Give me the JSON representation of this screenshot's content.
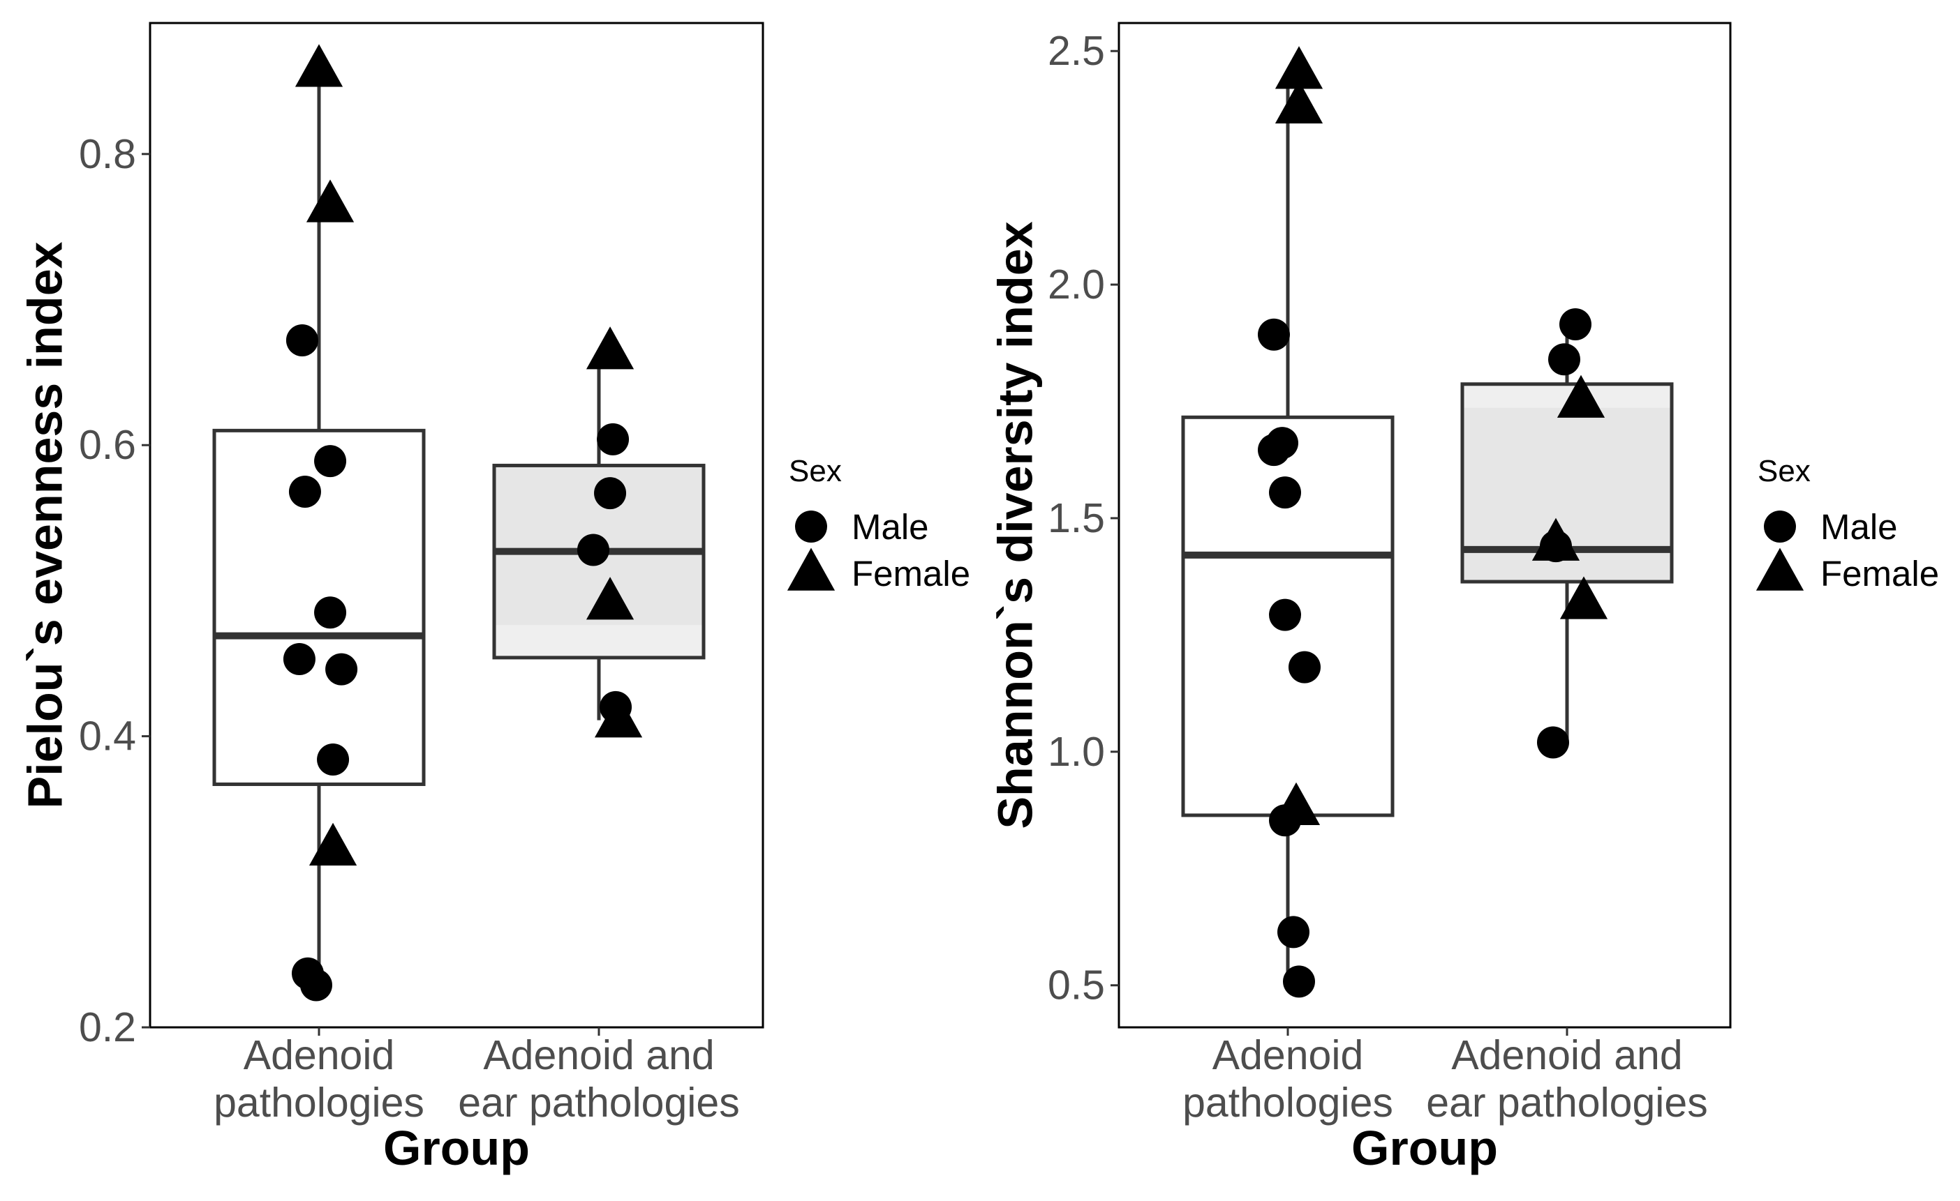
{
  "chart_data": [
    {
      "type": "boxplot",
      "title": "",
      "xlabel": "Group",
      "ylabel": "Pielou`s evenness index",
      "categories": [
        "Adenoid pathologies",
        "Adenoid and ear pathologies"
      ],
      "category_lines": [
        [
          "Adenoid",
          "pathologies"
        ],
        [
          "Adenoid and",
          "ear pathologies"
        ]
      ],
      "ylim": [
        0.2,
        0.89
      ],
      "yticks": [
        0.2,
        0.4,
        0.6,
        0.8
      ],
      "ytick_labels": [
        "0.2",
        "0.4",
        "0.6",
        "0.8"
      ],
      "boxes": [
        {
          "group": "Adenoid pathologies",
          "q1": 0.367,
          "median": 0.469,
          "q3": 0.61,
          "whisker_low": 0.23,
          "whisker_high": 0.858,
          "fill": "#ffffff"
        },
        {
          "group": "Adenoid and ear pathologies",
          "q1": 0.454,
          "median": 0.527,
          "q3": 0.586,
          "whisker_low": 0.411,
          "whisker_high": 0.664,
          "fill": "#e6e6e6",
          "fill_low": "#efefef"
        }
      ],
      "points": [
        {
          "group": 0,
          "offset": 0.0,
          "y": 0.858,
          "sex": "Female"
        },
        {
          "group": 0,
          "offset": 0.04,
          "y": 0.765,
          "sex": "Female"
        },
        {
          "group": 0,
          "offset": -0.06,
          "y": 0.672,
          "sex": "Male"
        },
        {
          "group": 0,
          "offset": 0.04,
          "y": 0.589,
          "sex": "Male"
        },
        {
          "group": 0,
          "offset": -0.05,
          "y": 0.568,
          "sex": "Male"
        },
        {
          "group": 0,
          "offset": 0.04,
          "y": 0.485,
          "sex": "Male"
        },
        {
          "group": 0,
          "offset": -0.07,
          "y": 0.453,
          "sex": "Male"
        },
        {
          "group": 0,
          "offset": 0.08,
          "y": 0.446,
          "sex": "Male"
        },
        {
          "group": 0,
          "offset": 0.05,
          "y": 0.384,
          "sex": "Male"
        },
        {
          "group": 0,
          "offset": 0.05,
          "y": 0.323,
          "sex": "Female"
        },
        {
          "group": 0,
          "offset": -0.04,
          "y": 0.237,
          "sex": "Male"
        },
        {
          "group": 0,
          "offset": -0.01,
          "y": 0.229,
          "sex": "Male"
        },
        {
          "group": 1,
          "offset": 0.04,
          "y": 0.664,
          "sex": "Female"
        },
        {
          "group": 1,
          "offset": 0.05,
          "y": 0.604,
          "sex": "Male"
        },
        {
          "group": 1,
          "offset": 0.04,
          "y": 0.567,
          "sex": "Male"
        },
        {
          "group": 1,
          "offset": -0.02,
          "y": 0.528,
          "sex": "Male"
        },
        {
          "group": 1,
          "offset": 0.04,
          "y": 0.492,
          "sex": "Female"
        },
        {
          "group": 1,
          "offset": 0.06,
          "y": 0.42,
          "sex": "Male"
        },
        {
          "group": 1,
          "offset": 0.07,
          "y": 0.411,
          "sex": "Female"
        }
      ],
      "legend": {
        "title": "Sex",
        "entries": [
          {
            "label": "Male",
            "shape": "circle"
          },
          {
            "label": "Female",
            "shape": "triangle"
          }
        ],
        "position": "right"
      }
    },
    {
      "type": "boxplot",
      "title": "",
      "xlabel": "Group",
      "ylabel": "Shannon`s diversity index",
      "categories": [
        "Adenoid pathologies",
        "Adenoid and ear pathologies"
      ],
      "category_lines": [
        [
          "Adenoid",
          "pathologies"
        ],
        [
          "Adenoid and",
          "ear pathologies"
        ]
      ],
      "ylim": [
        0.41,
        2.56
      ],
      "yticks": [
        0.5,
        1.0,
        1.5,
        2.0,
        2.5
      ],
      "ytick_labels": [
        "0.5",
        "1.0",
        "1.5",
        "2.0",
        "2.5"
      ],
      "boxes": [
        {
          "group": "Adenoid pathologies",
          "q1": 0.864,
          "median": 1.421,
          "q3": 1.716,
          "whisker_low": 0.508,
          "whisker_high": 2.456,
          "fill": "#ffffff"
        },
        {
          "group": "Adenoid and ear pathologies",
          "q1": 1.364,
          "median": 1.433,
          "q3": 1.787,
          "whisker_low": 1.02,
          "whisker_high": 1.915,
          "fill": "#e6e6e6",
          "fill_top": "#efefef"
        }
      ],
      "points": [
        {
          "group": 0,
          "offset": 0.04,
          "y": 2.456,
          "sex": "Female"
        },
        {
          "group": 0,
          "offset": 0.04,
          "y": 2.382,
          "sex": "Female"
        },
        {
          "group": 0,
          "offset": -0.05,
          "y": 1.893,
          "sex": "Male"
        },
        {
          "group": 0,
          "offset": -0.02,
          "y": 1.661,
          "sex": "Male"
        },
        {
          "group": 0,
          "offset": -0.05,
          "y": 1.646,
          "sex": "Male"
        },
        {
          "group": 0,
          "offset": -0.01,
          "y": 1.555,
          "sex": "Male"
        },
        {
          "group": 0,
          "offset": -0.01,
          "y": 1.293,
          "sex": "Male"
        },
        {
          "group": 0,
          "offset": 0.06,
          "y": 1.181,
          "sex": "Male"
        },
        {
          "group": 0,
          "offset": 0.03,
          "y": 0.88,
          "sex": "Female"
        },
        {
          "group": 0,
          "offset": -0.01,
          "y": 0.853,
          "sex": "Male"
        },
        {
          "group": 0,
          "offset": 0.02,
          "y": 0.614,
          "sex": "Male"
        },
        {
          "group": 0,
          "offset": 0.04,
          "y": 0.508,
          "sex": "Male"
        },
        {
          "group": 1,
          "offset": 0.03,
          "y": 1.915,
          "sex": "Male"
        },
        {
          "group": 1,
          "offset": -0.01,
          "y": 1.84,
          "sex": "Male"
        },
        {
          "group": 1,
          "offset": 0.05,
          "y": 1.752,
          "sex": "Female"
        },
        {
          "group": 1,
          "offset": -0.04,
          "y": 1.44,
          "sex": "Male"
        },
        {
          "group": 1,
          "offset": -0.04,
          "y": 1.446,
          "sex": "Female"
        },
        {
          "group": 1,
          "offset": 0.06,
          "y": 1.321,
          "sex": "Female"
        },
        {
          "group": 1,
          "offset": -0.05,
          "y": 1.02,
          "sex": "Male"
        }
      ],
      "legend": {
        "title": "Sex",
        "entries": [
          {
            "label": "Male",
            "shape": "circle"
          },
          {
            "label": "Female",
            "shape": "triangle"
          }
        ],
        "position": "right"
      }
    }
  ]
}
